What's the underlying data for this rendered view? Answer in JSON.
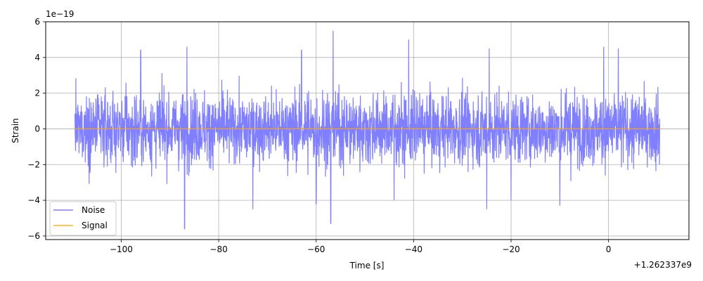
{
  "chart_data": {
    "type": "line",
    "title": "",
    "xlabel": "Time [s]",
    "ylabel": "Strain",
    "x_offset_text": "+1.262337e9",
    "y_exponent_text": "1e−19",
    "xlim": [
      -115.5,
      16.5
    ],
    "ylim": [
      -6.2,
      6.0
    ],
    "x_ticks": [
      -100,
      -80,
      -60,
      -40,
      -20,
      0
    ],
    "x_tick_labels": [
      "−100",
      "−80",
      "−60",
      "−40",
      "−20",
      "0"
    ],
    "y_ticks": [
      -6,
      -4,
      -2,
      0,
      2,
      4,
      6
    ],
    "y_tick_labels": [
      "−6",
      "−4",
      "−2",
      "0",
      "2",
      "4",
      "6"
    ],
    "grid": true,
    "legend_position": "lower-left",
    "series": [
      {
        "name": "Noise",
        "color": "#7f7fff",
        "x_range": [
          -109.5,
          10.5
        ],
        "amplitude_typical": 2.0,
        "peaks": [
          {
            "x": -87.0,
            "y": -5.6
          },
          {
            "x": -86.5,
            "y": 4.6
          },
          {
            "x": -96.0,
            "y": 4.4
          },
          {
            "x": -73.0,
            "y": -4.5
          },
          {
            "x": -56.5,
            "y": 5.5
          },
          {
            "x": -57.0,
            "y": -5.3
          },
          {
            "x": -41.0,
            "y": 5.0
          },
          {
            "x": -63.0,
            "y": 4.4
          },
          {
            "x": -60.0,
            "y": -4.2
          },
          {
            "x": -24.5,
            "y": 4.5
          },
          {
            "x": -25.0,
            "y": -4.5
          },
          {
            "x": -1.0,
            "y": 4.6
          },
          {
            "x": 2.0,
            "y": 4.5
          },
          {
            "x": -20.0,
            "y": -4.0
          },
          {
            "x": -10.0,
            "y": -4.3
          },
          {
            "x": -44.0,
            "y": -4.0
          }
        ]
      },
      {
        "name": "Signal",
        "color": "#ffa500",
        "x": [
          -109.5,
          10.5
        ],
        "y": [
          0.0,
          0.0
        ]
      }
    ]
  }
}
